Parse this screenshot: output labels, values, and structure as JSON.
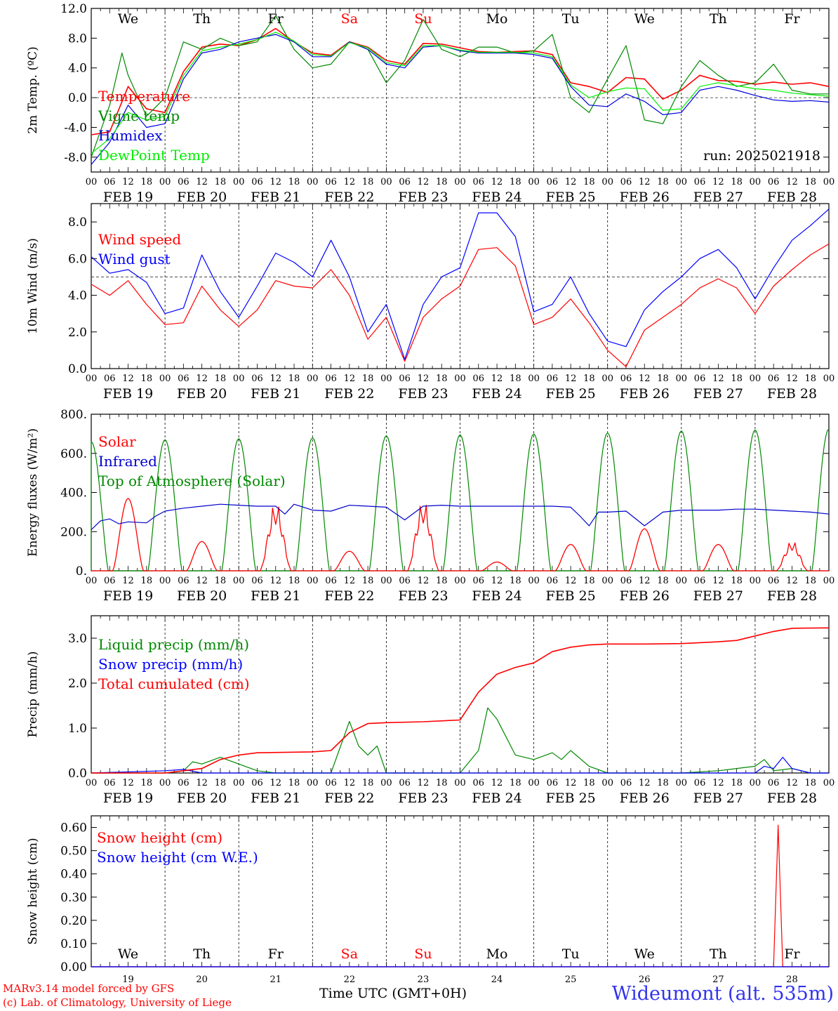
{
  "meta": {
    "run_label": "run: 2025021918",
    "station": "Wideumont (alt. 535m)",
    "credit_line1": "MARv3.14 model forced by GFS",
    "credit_line2": "(c) Lab. of Climatology, University of Liege",
    "time_axis_label": "Time UTC (GMT+0H)",
    "days": [
      "We",
      "Th",
      "Fr",
      "Sa",
      "Su",
      "Mo",
      "Tu",
      "We",
      "Th",
      "Fr"
    ],
    "day_colors": [
      "#000000",
      "#000000",
      "#000000",
      "#ff0000",
      "#ff0000",
      "#000000",
      "#000000",
      "#000000",
      "#000000",
      "#000000"
    ],
    "dates": [
      "FEB 19",
      "FEB 20",
      "FEB 21",
      "FEB 22",
      "FEB 23",
      "FEB 24",
      "FEB 25",
      "FEB 26",
      "FEB 27",
      "FEB 28"
    ],
    "day_numbers": [
      "19",
      "20",
      "21",
      "22",
      "23",
      "24",
      "25",
      "26",
      "27",
      "28"
    ],
    "hour_labels": [
      "00",
      "06",
      "12",
      "18"
    ],
    "last_hour_label": "00"
  },
  "chart_data": [
    {
      "id": "temperature",
      "type": "line",
      "ylabel": "2m Temp. (ºC)",
      "ylim": [
        -10,
        12
      ],
      "yticks": [
        -8,
        -4,
        0,
        4,
        8,
        12
      ],
      "ytick_labels": [
        "-8.0",
        "-4.0",
        "0.0",
        "4.0",
        "8.0",
        "12.0"
      ],
      "reference_line": 0,
      "x_unit": "hours since FEB 19 00 UTC",
      "series": [
        {
          "name": "Temperature",
          "color": "#ff0000",
          "x": [
            0,
            6,
            12,
            18,
            24,
            30,
            36,
            42,
            48,
            54,
            60,
            66,
            72,
            78,
            84,
            90,
            96,
            102,
            108,
            114,
            120,
            126,
            132,
            138,
            144,
            150,
            156,
            162,
            168,
            174,
            180,
            186,
            192,
            198,
            204,
            210,
            216,
            222,
            228,
            234,
            240
          ],
          "y": [
            -5,
            -4.6,
            1.5,
            -1.5,
            -2,
            3.5,
            6.8,
            7.2,
            7,
            7.8,
            9.3,
            7.5,
            6,
            5.7,
            7.5,
            6.8,
            5,
            4.5,
            7.3,
            7.2,
            6.7,
            6.2,
            6.1,
            6.2,
            6.3,
            5.8,
            2,
            1.5,
            0.7,
            2.7,
            2.5,
            -0.2,
            1,
            3,
            2.3,
            2.2,
            1.8,
            2.1,
            1.8,
            2,
            1.5
          ]
        },
        {
          "name": "Vigne temp",
          "color": "#008800",
          "x": [
            0,
            6,
            10,
            12,
            18,
            24,
            30,
            36,
            42,
            48,
            54,
            60,
            66,
            72,
            78,
            84,
            90,
            96,
            102,
            108,
            114,
            120,
            126,
            132,
            138,
            144,
            150,
            156,
            162,
            168,
            174,
            180,
            186,
            192,
            198,
            204,
            210,
            216,
            222,
            228,
            234,
            240
          ],
          "y": [
            -8,
            -1,
            6,
            3,
            -2.5,
            0,
            7.5,
            6.5,
            8,
            7,
            7.5,
            11,
            6.5,
            4,
            4.5,
            7.5,
            6.5,
            2,
            5,
            10.5,
            6.5,
            5.5,
            6.8,
            6.8,
            6,
            6.3,
            8.5,
            0,
            -2,
            2.5,
            7,
            -3,
            -3.5,
            1.5,
            5,
            3,
            1.5,
            2,
            4.5,
            1,
            0.5,
            0.5
          ]
        },
        {
          "name": "Humidex",
          "color": "#0000dd",
          "x": [
            0,
            6,
            12,
            18,
            24,
            30,
            36,
            42,
            48,
            54,
            60,
            66,
            72,
            78,
            84,
            90,
            96,
            102,
            108,
            114,
            120,
            126,
            132,
            138,
            144,
            150,
            156,
            162,
            168,
            174,
            180,
            186,
            192,
            198,
            204,
            210,
            216,
            222,
            228,
            234,
            240
          ],
          "y": [
            -9,
            -6,
            -1,
            -4,
            -3.5,
            2.5,
            6,
            6.5,
            7.5,
            8,
            8.5,
            7.5,
            5.5,
            5.5,
            7.5,
            6.5,
            4.5,
            4,
            6.8,
            7,
            6.3,
            6,
            6,
            6,
            5.8,
            5.3,
            1.5,
            -1,
            -1.2,
            0.5,
            -0.5,
            -2.3,
            -2,
            1,
            1.5,
            1,
            0.3,
            -0.3,
            -0.5,
            -0.4,
            -0.6
          ]
        },
        {
          "name": "DewPoint Temp",
          "color": "#00ee00",
          "x": [
            0,
            6,
            12,
            18,
            24,
            30,
            36,
            42,
            48,
            54,
            60,
            66,
            72,
            78,
            84,
            90,
            96,
            102,
            108,
            114,
            120,
            126,
            132,
            138,
            144,
            150,
            156,
            162,
            168,
            174,
            180,
            186,
            192,
            198,
            204,
            210,
            216,
            222,
            228,
            234,
            240
          ],
          "y": [
            -7.5,
            -5.5,
            -2,
            -3,
            -2.5,
            3,
            6.3,
            6.8,
            7.2,
            7.8,
            8.8,
            7.6,
            5.8,
            5.6,
            7.4,
            6.7,
            4.7,
            4.3,
            7,
            7,
            6.4,
            6.1,
            6.1,
            6.1,
            6,
            5.5,
            1.7,
            0,
            0.8,
            1.3,
            1.2,
            -1.7,
            -1.5,
            1.5,
            2,
            1.6,
            1.2,
            1,
            0.6,
            0.4,
            0.2
          ]
        }
      ]
    },
    {
      "id": "wind",
      "type": "line",
      "ylabel": "10m Wind (m/s)",
      "ylim": [
        0,
        9
      ],
      "yticks": [
        0,
        2,
        4,
        6,
        8
      ],
      "ytick_labels": [
        "0.0",
        "2.0",
        "4.0",
        "6.0",
        "8.0"
      ],
      "reference_line": 5,
      "x_unit": "hours since FEB 19 00 UTC",
      "series": [
        {
          "name": "Wind speed",
          "color": "#ff0000",
          "x": [
            0,
            6,
            12,
            18,
            24,
            30,
            36,
            42,
            48,
            54,
            60,
            66,
            72,
            78,
            84,
            90,
            96,
            102,
            108,
            114,
            120,
            126,
            132,
            138,
            144,
            150,
            156,
            162,
            168,
            174,
            180,
            186,
            192,
            198,
            204,
            210,
            216,
            222,
            228,
            234,
            240
          ],
          "y": [
            4.6,
            4,
            4.8,
            3.5,
            2.4,
            2.5,
            4.5,
            3.2,
            2.3,
            3.2,
            4.8,
            4.5,
            4.4,
            5.4,
            4,
            1.6,
            2.8,
            0.4,
            2.8,
            3.8,
            4.5,
            6.5,
            6.6,
            5.6,
            2.4,
            2.8,
            3.8,
            2.5,
            1.0,
            0.1,
            2.1,
            2.8,
            3.5,
            4.4,
            4.9,
            4.4,
            3.0,
            4.5,
            5.4,
            6.2,
            6.8
          ]
        },
        {
          "name": "Wind gust",
          "color": "#0000ff",
          "x": [
            0,
            6,
            12,
            18,
            24,
            30,
            36,
            42,
            48,
            54,
            60,
            66,
            72,
            78,
            84,
            90,
            96,
            102,
            108,
            114,
            120,
            126,
            132,
            138,
            144,
            150,
            156,
            162,
            168,
            174,
            180,
            186,
            192,
            198,
            204,
            210,
            216,
            222,
            228,
            234,
            240
          ],
          "y": [
            6.1,
            5.2,
            5.4,
            4.7,
            3.0,
            3.3,
            6.2,
            4.2,
            2.8,
            4.5,
            6.3,
            5.8,
            5.0,
            7.0,
            5.0,
            2.0,
            3.5,
            0.5,
            3.5,
            5.0,
            5.5,
            8.5,
            8.5,
            7.2,
            3.1,
            3.5,
            5.0,
            3.0,
            1.5,
            1.2,
            3.2,
            4.2,
            5.0,
            6.0,
            6.5,
            5.5,
            3.8,
            5.5,
            7.0,
            7.8,
            8.7
          ]
        }
      ]
    },
    {
      "id": "energy",
      "type": "line",
      "ylabel": "Energy fluxes (W/m²)",
      "ylim": [
        0,
        800
      ],
      "yticks": [
        0,
        200,
        400,
        600,
        800
      ],
      "ytick_labels": [
        "0.",
        "200.",
        "400.",
        "600.",
        "800."
      ],
      "x_unit": "hours since FEB 19 00 UTC",
      "toa_peaks": [
        660,
        670,
        675,
        680,
        690,
        695,
        700,
        705,
        715,
        720,
        725
      ],
      "solar_peaks_by_day": [
        370,
        150,
        365,
        100,
        375,
        45,
        135,
        215,
        135,
        160
      ],
      "series": [
        {
          "name": "Solar",
          "color": "#ff0000"
        },
        {
          "name": "Infrared",
          "color": "#0000cc",
          "x": [
            0,
            3,
            6,
            9,
            12,
            18,
            21,
            24,
            30,
            36,
            42,
            48,
            54,
            60,
            63,
            66,
            72,
            78,
            84,
            96,
            102,
            108,
            114,
            120,
            126,
            132,
            138,
            144,
            150,
            156,
            159,
            162,
            165,
            168,
            174,
            180,
            186,
            192,
            198,
            204,
            210,
            216,
            222,
            228,
            234,
            240
          ],
          "y": [
            210,
            255,
            265,
            240,
            250,
            245,
            280,
            305,
            320,
            330,
            340,
            335,
            330,
            330,
            290,
            340,
            310,
            305,
            335,
            325,
            260,
            330,
            335,
            330,
            330,
            330,
            330,
            330,
            330,
            325,
            280,
            230,
            300,
            300,
            305,
            230,
            300,
            310,
            310,
            310,
            315,
            315,
            310,
            305,
            300,
            290
          ]
        },
        {
          "name": "Top of Atmosphere (Solar)",
          "color": "#008800"
        }
      ]
    },
    {
      "id": "precip",
      "type": "line",
      "ylabel": "Precip (mm/h)",
      "ylim": [
        0,
        3.5
      ],
      "yticks": [
        0,
        1,
        2,
        3
      ],
      "ytick_labels": [
        "0.0",
        "1.0",
        "2.0",
        "3.0"
      ],
      "x_unit": "hours since FEB 19 00 UTC",
      "series": [
        {
          "name": "Liquid precip (mm/h)",
          "color": "#008800",
          "x": [
            0,
            24,
            30,
            33,
            36,
            42,
            48,
            54,
            60,
            66,
            72,
            78,
            84,
            87,
            90,
            93,
            96,
            102,
            120,
            126,
            129,
            132,
            138,
            144,
            150,
            153,
            156,
            162,
            168,
            180,
            186,
            192,
            204,
            210,
            216,
            219,
            222,
            228,
            234,
            240
          ],
          "y": [
            0,
            0,
            0.05,
            0.25,
            0.2,
            0.35,
            0.2,
            0.05,
            0,
            0,
            0,
            0,
            1.15,
            0.6,
            0.4,
            0.6,
            0,
            0,
            0,
            0.5,
            1.45,
            1.2,
            0.4,
            0.3,
            0.45,
            0.3,
            0.5,
            0.15,
            0,
            0,
            0,
            0,
            0.05,
            0.1,
            0.15,
            0.3,
            0.05,
            0.1,
            0,
            0
          ]
        },
        {
          "name": "Snow precip (mm/h)",
          "color": "#0000ff",
          "x": [
            0,
            24,
            30,
            36,
            216,
            219,
            222,
            225,
            228,
            234,
            240
          ],
          "y": [
            0,
            0.05,
            0.08,
            0,
            0,
            0.15,
            0.1,
            0.35,
            0.1,
            0,
            0
          ]
        },
        {
          "name": "Total cumulated (cm)",
          "color": "#ff0000",
          "x": [
            0,
            24,
            30,
            36,
            42,
            48,
            54,
            72,
            78,
            84,
            90,
            96,
            108,
            120,
            126,
            132,
            138,
            144,
            150,
            156,
            162,
            168,
            180,
            192,
            204,
            210,
            216,
            222,
            228,
            240
          ],
          "y": [
            0,
            0,
            0.05,
            0.1,
            0.3,
            0.4,
            0.45,
            0.47,
            0.5,
            0.9,
            1.1,
            1.12,
            1.14,
            1.18,
            1.8,
            2.2,
            2.35,
            2.45,
            2.7,
            2.8,
            2.85,
            2.87,
            2.87,
            2.88,
            2.92,
            2.95,
            3.05,
            3.15,
            3.22,
            3.23
          ]
        }
      ]
    },
    {
      "id": "snow",
      "type": "line",
      "ylabel": "Snow height (cm)",
      "ylim": [
        0,
        0.65
      ],
      "yticks": [
        0,
        0.1,
        0.2,
        0.3,
        0.4,
        0.5,
        0.6
      ],
      "ytick_labels": [
        "0.00",
        "0.10",
        "0.20",
        "0.30",
        "0.40",
        "0.50",
        "0.60"
      ],
      "x_unit": "hours since FEB 19 00 UTC",
      "series": [
        {
          "name": "Snow height (cm)",
          "color": "#ff0000",
          "x": [
            0,
            222,
            223.5,
            225,
            240
          ],
          "y": [
            0,
            0,
            0.61,
            0,
            0
          ]
        },
        {
          "name": "Snow height (cm W.E.)",
          "color": "#0000ff",
          "x": [
            0,
            240
          ],
          "y": [
            0,
            0
          ]
        }
      ]
    }
  ]
}
